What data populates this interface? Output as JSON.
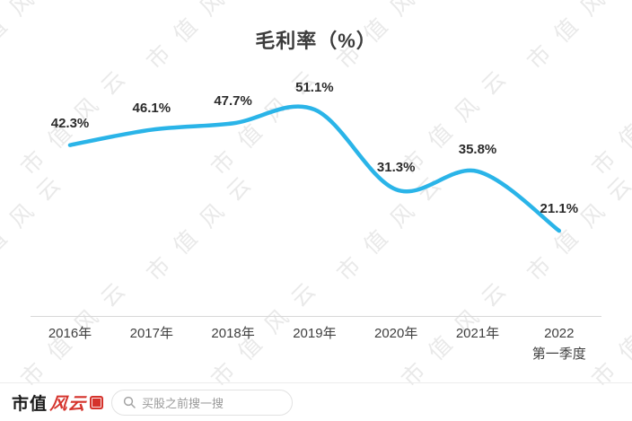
{
  "chart_data": {
    "type": "line",
    "title": "毛利率（%）",
    "categories": [
      "2016年",
      "2017年",
      "2018年",
      "2019年",
      "2020年",
      "2021年",
      "2022\n第一季度"
    ],
    "values": [
      42.3,
      46.1,
      47.7,
      51.1,
      31.3,
      35.8,
      21.1
    ],
    "point_labels": [
      "42.3%",
      "46.1%",
      "47.7%",
      "51.1%",
      "31.3%",
      "35.8%",
      "21.1%"
    ],
    "line_color": "#2ab4e8",
    "ylim": [
      0,
      60
    ],
    "grid": false,
    "legend": "none",
    "xlabel": "",
    "ylabel": ""
  },
  "watermark": {
    "text": "市值风云"
  },
  "footer": {
    "brand_prefix": "市值",
    "brand_suffix": "风云",
    "seal_icon": "fengyun-seal-icon",
    "search_icon": "search-icon",
    "search_placeholder": "买股之前搜一搜"
  }
}
